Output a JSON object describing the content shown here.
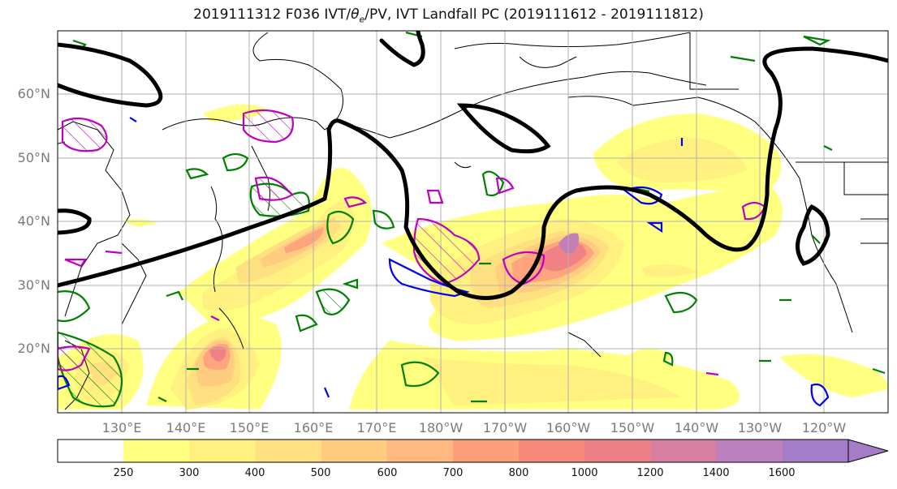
{
  "title": "2019111312 F036 IVT/θe/PV, IVT Landfall PC (2019111612 - 2019111812)",
  "title_parts": {
    "pre": "2019111312 F036 IVT/",
    "theta": "θ",
    "sub": "e",
    "post": "/PV, IVT Landfall PC (2019111612 - 2019111812)"
  },
  "lat_labels": [
    "60°N",
    "50°N",
    "40°N",
    "30°N",
    "20°N"
  ],
  "lon_labels": [
    "130°E",
    "140°E",
    "150°E",
    "160°E",
    "170°E",
    "180°W",
    "170°W",
    "160°W",
    "150°W",
    "140°W",
    "130°W",
    "120°W"
  ],
  "colorbar": {
    "ticks": [
      "250",
      "300",
      "400",
      "500",
      "600",
      "700",
      "800",
      "1000",
      "1200",
      "1400",
      "1600"
    ],
    "colors": [
      "#ffffff",
      "#ffff80",
      "#fff080",
      "#ffe080",
      "#ffcc80",
      "#ffb880",
      "#ff9e7a",
      "#f78a7a",
      "#ee7f86",
      "#d87ea0",
      "#bd80bf",
      "#a57cc7"
    ]
  },
  "colors": {
    "ivt_contour_black": "#000000",
    "theta_e": "#008000",
    "pv_magenta": "#c000c0",
    "pv_blue": "#0000ee",
    "coast": "#000000",
    "grid": "#b0b0b0"
  }
}
